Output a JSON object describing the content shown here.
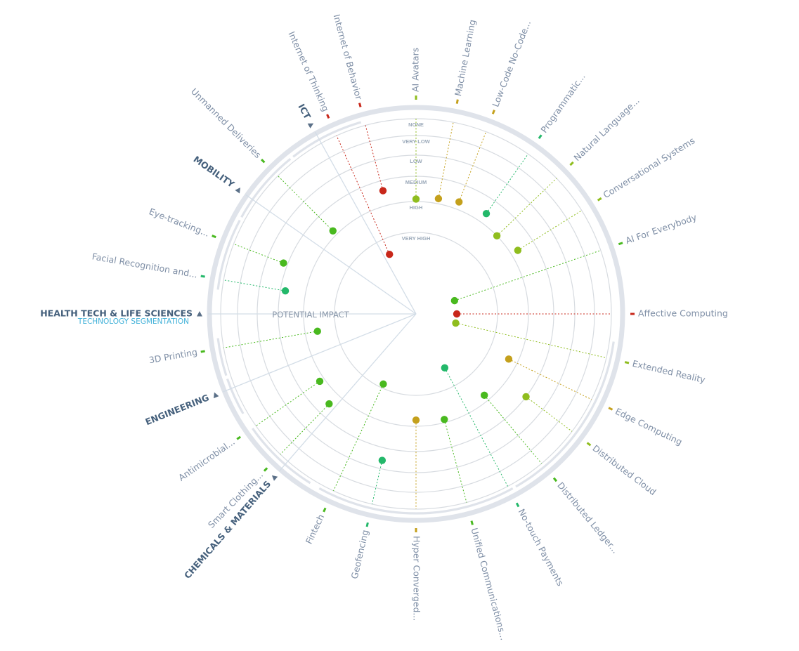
{
  "chart_data": {
    "type": "radar",
    "axis_title": "POTENTIAL IMPACT",
    "segmentation_title": "TECHNOLOGY SEGMENTATION",
    "rings": [
      "NONE",
      "VERY LOW",
      "LOW",
      "MEDIUM",
      "HIGH",
      "VERY HIGH"
    ],
    "colors": {
      "red": "#c8271a",
      "gold": "#c4a01c",
      "lime": "#8fbd1e",
      "green": "#49b91f",
      "teal": "#23b86a"
    },
    "categories": [
      {
        "name": "ICT",
        "angle": 119
      },
      {
        "name": "MOBILITY",
        "angle": 145
      },
      {
        "name": "HEALTH TECH & LIFE SCIENCES",
        "angle": 180
      },
      {
        "name": "ENGINEERING",
        "angle": 202
      },
      {
        "name": "CHEMICALS & MATERIALS",
        "angle": 229
      }
    ],
    "technologies": [
      {
        "label": "Internet of Behavior",
        "angle": 105,
        "impact": 3.4,
        "color": "red"
      },
      {
        "label": "Internet of Thinking",
        "angle": 114,
        "impact": 5.4,
        "color": "red"
      },
      {
        "label": "AI Avatars",
        "angle": 90,
        "impact": 3.9,
        "color": "lime"
      },
      {
        "label": "Machine Learning",
        "angle": 79,
        "impact": 3.8,
        "color": "gold"
      },
      {
        "label": "Low-Code No-Code...",
        "angle": 69,
        "impact": 3.7,
        "color": "gold"
      },
      {
        "label": "Programmatic...",
        "angle": 55,
        "impact": 3.6,
        "color": "teal"
      },
      {
        "label": "Natural Language...",
        "angle": 44,
        "impact": 4.0,
        "color": "lime"
      },
      {
        "label": "Conversational Systems",
        "angle": 32,
        "impact": 3.7,
        "color": "lime"
      },
      {
        "label": "AI For Everybody",
        "angle": 19,
        "impact": 6.5,
        "color": "green"
      },
      {
        "label": "Affective Computing",
        "angle": 0,
        "impact": 6.5,
        "color": "red"
      },
      {
        "label": "Extended Reality",
        "angle": -13,
        "impact": 6.5,
        "color": "lime"
      },
      {
        "label": "Edge Computing",
        "angle": -26,
        "impact": 4.3,
        "color": "gold"
      },
      {
        "label": "Distributed Cloud",
        "angle": -37,
        "impact": 3.0,
        "color": "lime"
      },
      {
        "label": "Distributed Ledger...",
        "angle": -50,
        "impact": 4.2,
        "color": "green"
      },
      {
        "label": "No-touch Payments",
        "angle": -62,
        "impact": 5.5,
        "color": "teal"
      },
      {
        "label": "Unified Communications...",
        "angle": -75,
        "impact": 4.1,
        "color": "green"
      },
      {
        "label": "Hyper Converged...",
        "angle": -90,
        "impact": 4.2,
        "color": "gold"
      },
      {
        "label": "Geofencing",
        "angle": -103,
        "impact": 2.4,
        "color": "teal"
      },
      {
        "label": "Fintech",
        "angle": -115,
        "impact": 5.1,
        "color": "green"
      },
      {
        "label": "Smart Clothing...",
        "angle": -134,
        "impact": 3.5,
        "color": "green"
      },
      {
        "label": "Antimicrobial...",
        "angle": -145,
        "impact": 3.8,
        "color": "green"
      },
      {
        "label": "3D Printing",
        "angle": -170,
        "impact": 4.4,
        "color": "green"
      },
      {
        "label": "Facial Recognition and...",
        "angle": 170,
        "impact": 3.2,
        "color": "teal"
      },
      {
        "label": "Eye-tracking...",
        "angle": 159,
        "impact": 2.8,
        "color": "green"
      },
      {
        "label": "Unmanned Deliveries",
        "angle": 135,
        "impact": 3.8,
        "color": "green"
      }
    ]
  }
}
